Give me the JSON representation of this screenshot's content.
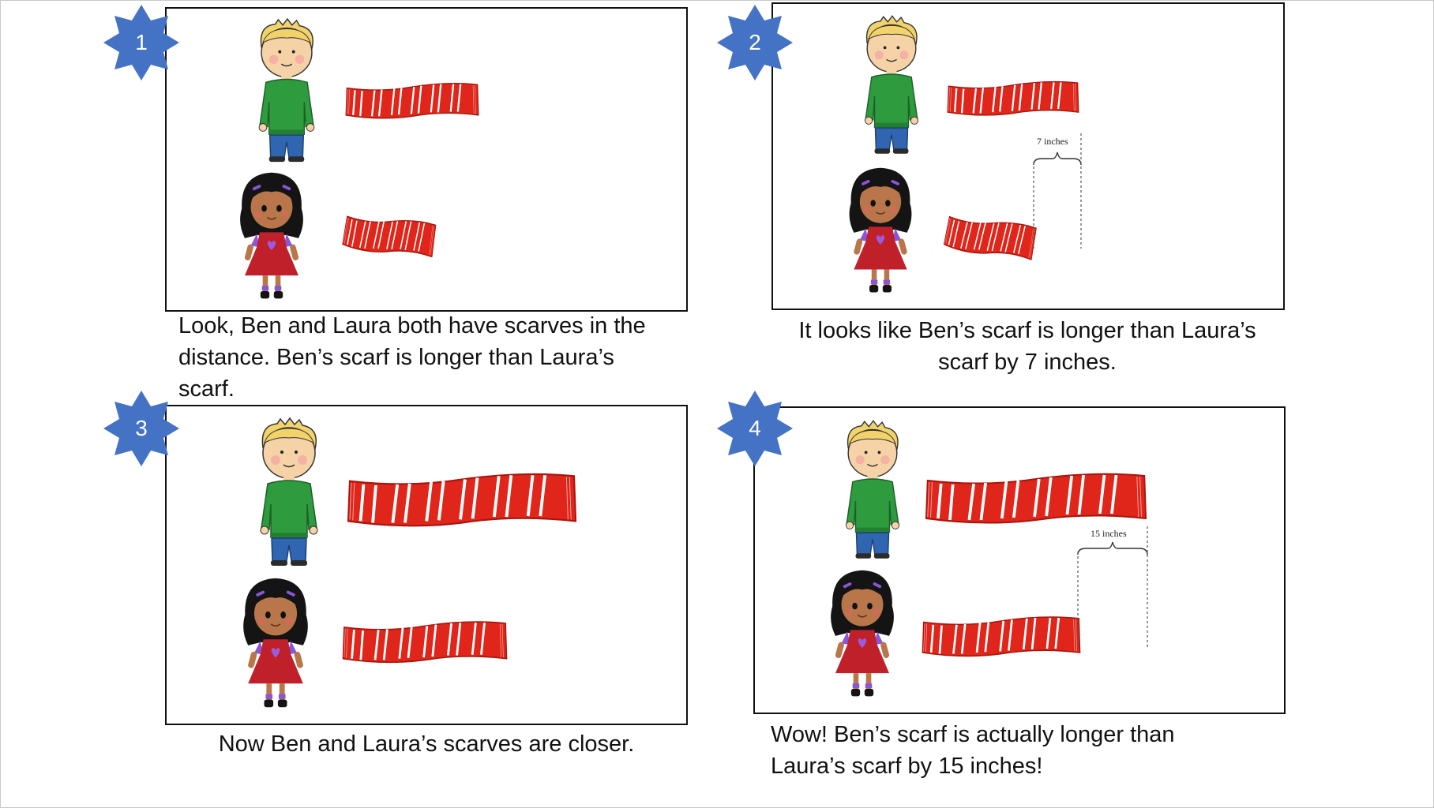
{
  "panels": [
    {
      "number": "1",
      "caption": "Look, Ben and Laura both have scarves in the distance. Ben’s scarf is longer than Laura’s scarf."
    },
    {
      "number": "2",
      "caption": "It looks like Ben’s scarf is longer than Laura’s scarf by 7 inches.",
      "measure_label": "7 inches"
    },
    {
      "number": "3",
      "caption": "Now Ben and Laura’s scarves are closer."
    },
    {
      "number": "4",
      "caption": "Wow! Ben’s scarf is actually longer than Laura’s scarf by 15 inches!",
      "measure_label": "15 inches"
    }
  ],
  "colors": {
    "badge": "#4472C4",
    "scarf": "#E0261B",
    "stripe": "#ffffff",
    "border": "#111111"
  }
}
